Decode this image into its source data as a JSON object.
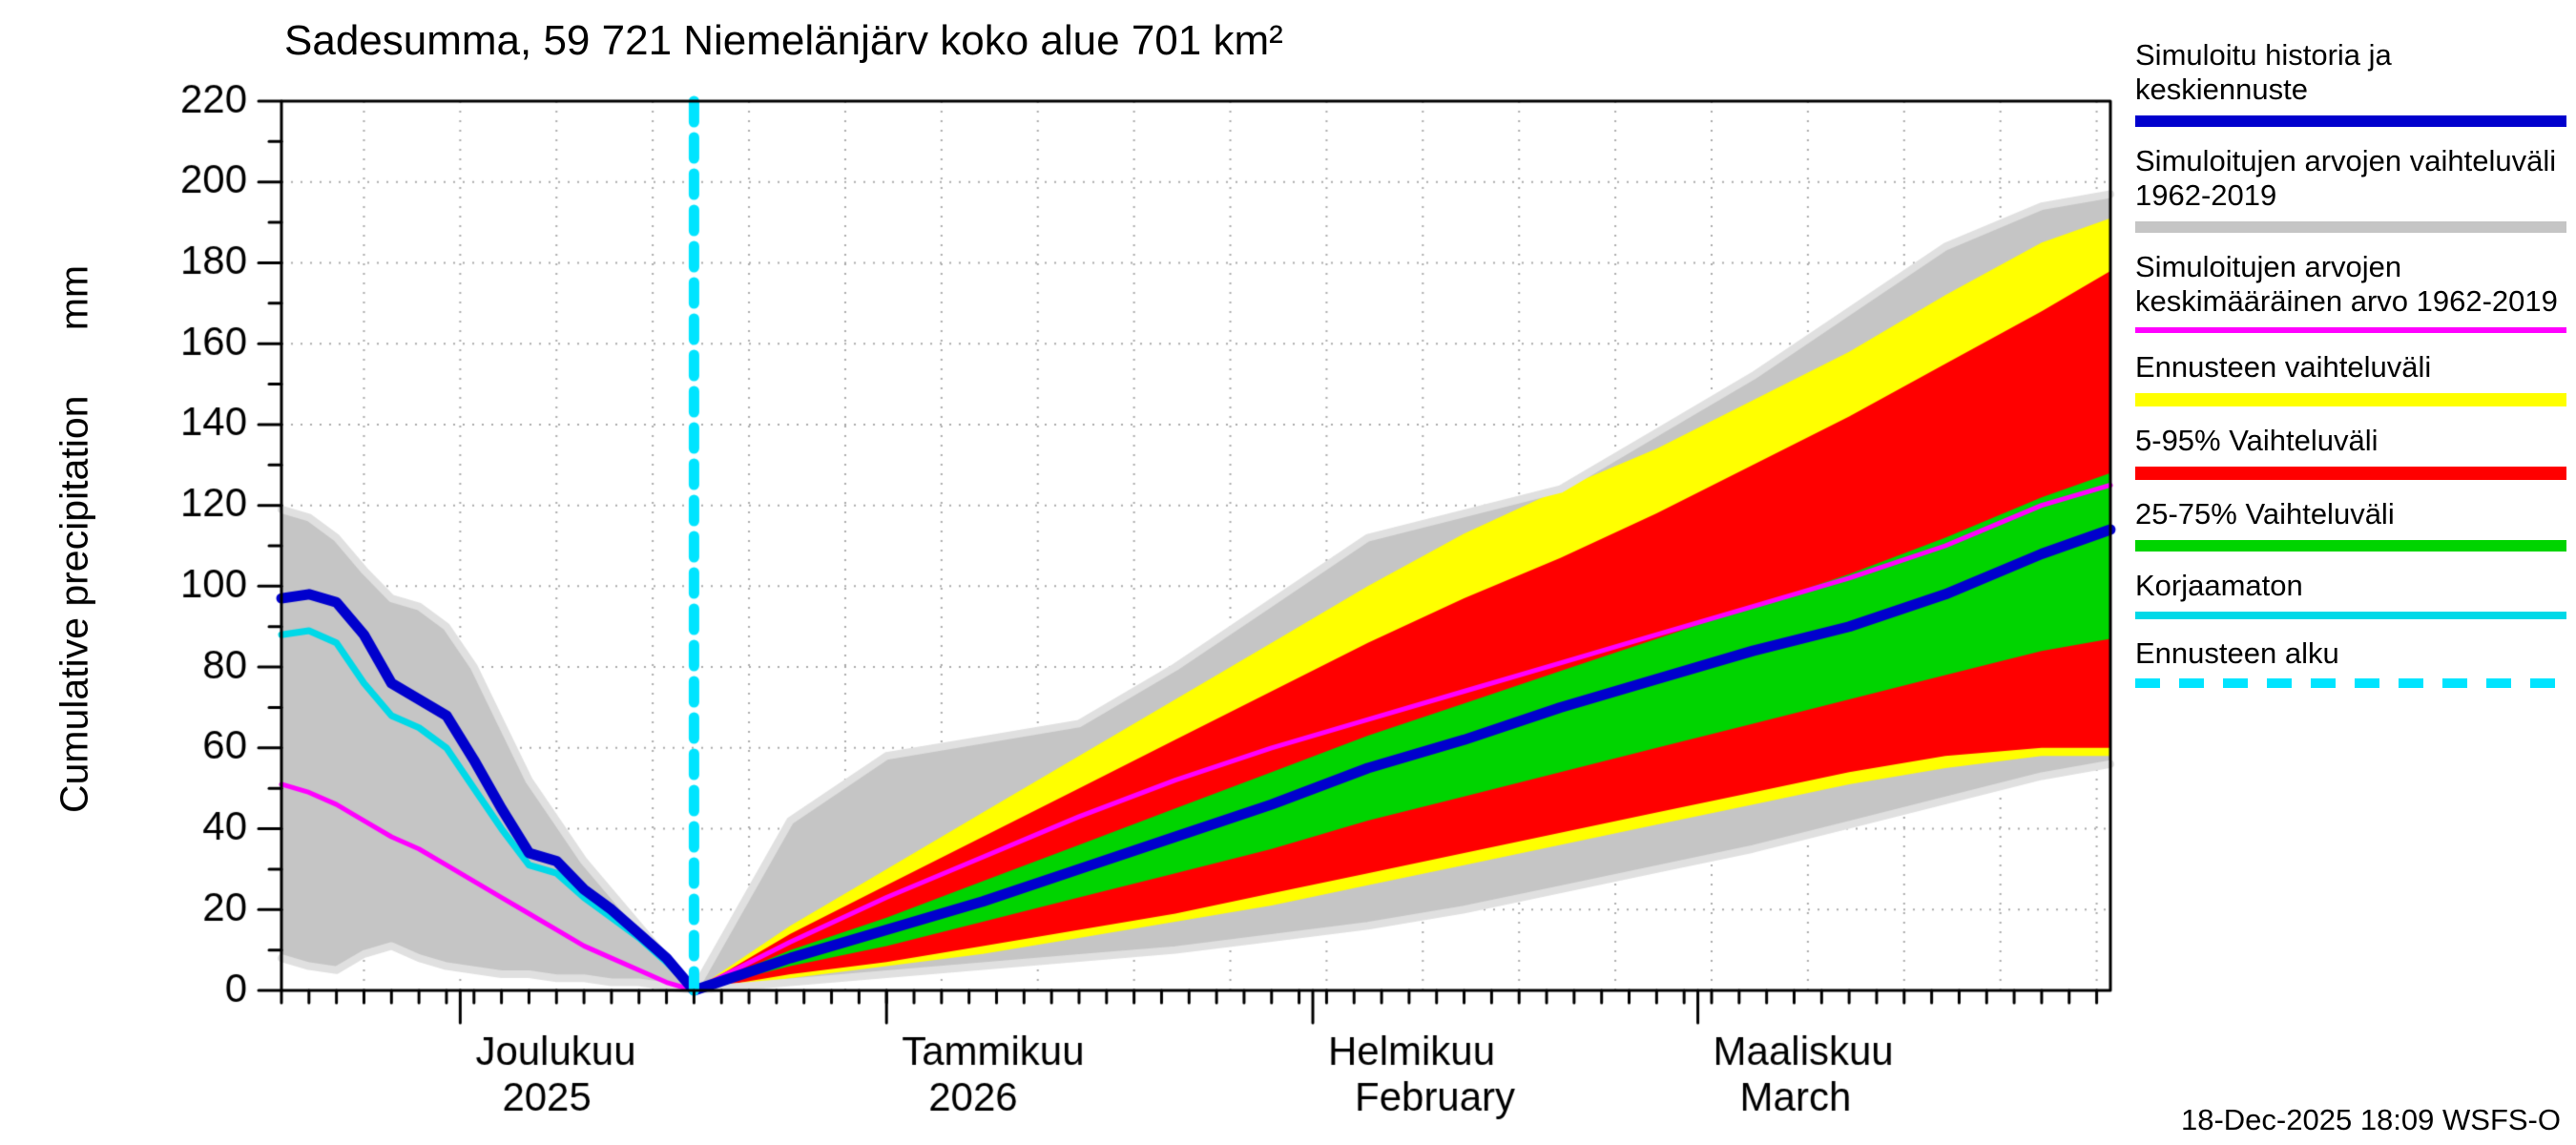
{
  "title": "Sadesumma, 59 721 Niemelänjärv koko alue 701 km²",
  "ylabel": "Cumulative precipitation      mm",
  "datestamp": "18-Dec-2025 18:09 WSFS-O",
  "legend": [
    {
      "label": "Simuloitu historia ja keskiennuste",
      "color": "#0000cd",
      "style": "solid",
      "thickness": 12
    },
    {
      "label": "Simuloitujen arvojen vaihteluväli 1962-2019",
      "color": "#c5c5c5",
      "style": "solid",
      "thickness": 12
    },
    {
      "label": "Simuloitujen arvojen keskimääräinen arvo 1962-2019",
      "color": "#ff00ff",
      "style": "solid",
      "thickness": 6
    },
    {
      "label": "Ennusteen vaihteluväli",
      "color": "#ffff00",
      "style": "solid",
      "thickness": 14
    },
    {
      "label": "5-95% Vaihteluväli",
      "color": "#ff0000",
      "style": "solid",
      "thickness": 14
    },
    {
      "label": "25-75% Vaihteluväli",
      "color": "#00d400",
      "style": "solid",
      "thickness": 12
    },
    {
      "label": "Korjaamaton",
      "color": "#00d9e8",
      "style": "solid",
      "thickness": 8
    },
    {
      "label": "Ennusteen alku",
      "color": "#00e4ff",
      "style": "dashed",
      "thickness": 10
    }
  ],
  "chart_data": {
    "type": "area",
    "title": "Sadesumma, 59 721 Niemelänjärv koko alue 701 km²",
    "xlabel": "",
    "ylabel": "Cumulative precipitation (mm)",
    "ylim": [
      0,
      220
    ],
    "y_tick_step": 20,
    "y_minor_step": 10,
    "x_unit": "days",
    "x_range_days": [
      0,
      133
    ],
    "forecast_start_day": 30,
    "grid": true,
    "legend_position": "right",
    "x_month_ticks": [
      {
        "day": 13,
        "line1": "Joulukuu",
        "line2": "2025"
      },
      {
        "day": 44,
        "line1": "Tammikuu",
        "line2": "2026"
      },
      {
        "day": 75,
        "line1": "Helmikuu",
        "line2": "February"
      },
      {
        "day": 103,
        "line1": "Maaliskuu",
        "line2": "March"
      }
    ],
    "colors": {
      "blue": "#0000cd",
      "cyan": "#00d9e8",
      "magenta": "#ff00ff",
      "gray_band": "#c5c5c5",
      "gray_line": "#e0e0e0",
      "yellow": "#ffff00",
      "red": "#ff0000",
      "green": "#00d400",
      "forecast_start": "#00e4ff",
      "grid": "#aaaaaa"
    },
    "history": {
      "x": [
        0,
        2,
        4,
        6,
        8,
        10,
        12,
        14,
        16,
        18,
        20,
        22,
        24,
        26,
        28,
        30
      ],
      "gray_upper": [
        119,
        117,
        112,
        104,
        97,
        95,
        90,
        80,
        66,
        52,
        42,
        32,
        24,
        16,
        8,
        0
      ],
      "gray_lower": [
        8,
        6,
        5,
        9,
        11,
        8,
        6,
        5,
        4,
        4,
        3,
        3,
        2,
        2,
        1,
        0
      ],
      "blue": [
        97,
        98,
        96,
        88,
        76,
        72,
        68,
        57,
        45,
        34,
        32,
        25,
        20,
        14,
        8,
        0
      ],
      "cyan": [
        88,
        89,
        86,
        76,
        68,
        65,
        60,
        50,
        40,
        31,
        29,
        23,
        18,
        13,
        7,
        0
      ],
      "magenta": [
        51,
        49,
        46,
        42,
        38,
        35,
        31,
        27,
        23,
        19,
        15,
        11,
        8,
        5,
        2,
        0
      ]
    },
    "forecast": {
      "x": [
        30,
        37,
        44,
        51,
        58,
        65,
        72,
        79,
        86,
        93,
        100,
        107,
        114,
        121,
        128,
        133
      ],
      "gray_upper": [
        0,
        42,
        58,
        62,
        66,
        80,
        96,
        112,
        118,
        124,
        138,
        152,
        168,
        184,
        194,
        197
      ],
      "gray_lower": [
        0,
        2,
        4,
        6,
        8,
        10,
        13,
        16,
        20,
        25,
        30,
        35,
        41,
        47,
        53,
        56
      ],
      "yellow_upper": [
        0,
        16,
        30,
        44,
        58,
        72,
        86,
        100,
        113,
        124,
        134,
        146,
        158,
        172,
        185,
        191
      ],
      "yellow_lower": [
        0,
        3,
        6,
        9,
        13,
        17,
        21,
        26,
        31,
        36,
        41,
        46,
        51,
        55,
        58,
        58
      ],
      "red_upper": [
        0,
        14,
        26,
        38,
        50,
        62,
        74,
        86,
        97,
        107,
        118,
        130,
        142,
        155,
        168,
        178
      ],
      "red_lower": [
        0,
        4,
        7,
        11,
        15,
        19,
        24,
        29,
        34,
        39,
        44,
        49,
        54,
        58,
        60,
        60
      ],
      "green_upper": [
        0,
        10,
        18,
        27,
        36,
        45,
        54,
        63,
        71,
        79,
        87,
        95,
        103,
        112,
        122,
        128
      ],
      "green_lower": [
        0,
        6,
        11,
        17,
        23,
        29,
        35,
        42,
        48,
        54,
        60,
        66,
        72,
        78,
        84,
        87
      ],
      "blue": [
        0,
        8,
        15,
        22,
        30,
        38,
        46,
        55,
        62,
        70,
        77,
        84,
        90,
        98,
        108,
        114
      ],
      "magenta": [
        0,
        12,
        23,
        33,
        43,
        52,
        60,
        67,
        74,
        81,
        88,
        95,
        102,
        110,
        120,
        125
      ]
    }
  }
}
